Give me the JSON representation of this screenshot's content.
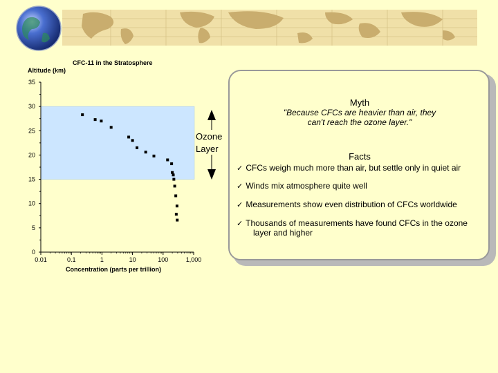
{
  "chart_data": {
    "type": "scatter",
    "title": "CFC-11 in the Stratosphere",
    "ylabel": "Altitude (km)",
    "xlabel": "Concentration (parts per trillion)",
    "x_scale": "log",
    "xlim": [
      0.01,
      1000
    ],
    "ylim": [
      0,
      35
    ],
    "x_tick_labels": [
      "0.01",
      "0.1",
      "1",
      "10",
      "100",
      "1,000"
    ],
    "y_tick_labels": [
      "0",
      "5",
      "10",
      "15",
      "20",
      "25",
      "30",
      "35"
    ],
    "ozone_band": [
      15,
      30
    ],
    "grid": false,
    "legend": "none",
    "series": [
      {
        "points": [
          {
            "x": 0.23,
            "y": 28.3
          },
          {
            "x": 0.6,
            "y": 27.3
          },
          {
            "x": 0.95,
            "y": 27.0
          },
          {
            "x": 2.0,
            "y": 25.7
          },
          {
            "x": 7.5,
            "y": 23.7
          },
          {
            "x": 10,
            "y": 23.0
          },
          {
            "x": 14,
            "y": 21.5
          },
          {
            "x": 27,
            "y": 20.6
          },
          {
            "x": 50,
            "y": 19.8
          },
          {
            "x": 140,
            "y": 19.0
          },
          {
            "x": 190,
            "y": 18.2
          },
          {
            "x": 200,
            "y": 16.4
          },
          {
            "x": 215,
            "y": 15.9
          },
          {
            "x": 225,
            "y": 15.0
          },
          {
            "x": 240,
            "y": 13.6
          },
          {
            "x": 260,
            "y": 11.6
          },
          {
            "x": 285,
            "y": 9.5
          },
          {
            "x": 270,
            "y": 7.8
          },
          {
            "x": 290,
            "y": 6.6
          }
        ]
      }
    ]
  },
  "annotation": {
    "ozone_label_line1": "Ozone",
    "ozone_label_line2": "Layer"
  },
  "callout": {
    "myth_title": "Myth",
    "myth_quote_line1": "\"Because CFCs are heavier than air, they",
    "myth_quote_line2": "can't reach the ozone layer.\"",
    "facts_title": "Facts",
    "check_mark": "✓",
    "facts": [
      {
        "line1": "CFCs weigh much more than air, but settle only in quiet air",
        "line2": ""
      },
      {
        "line1": "Winds mix atmosphere quite well",
        "line2": ""
      },
      {
        "line1": "Measurements show even distribution of CFCs worldwide",
        "line2": ""
      },
      {
        "line1": "Thousands of measurements have found CFCs in the ozone",
        "line2": "layer and higher"
      }
    ]
  },
  "colors": {
    "background": "#ffffcc",
    "ozone_band": "#cce6ff",
    "banner_map": "#f0e0a8",
    "banner_land": "#c9ad6e",
    "globe_ocean": "#2b4fb0",
    "markers": "#000000"
  },
  "icons": {
    "globe": "globe-icon",
    "up_arrow": "arrow-up-icon",
    "down_arrow": "arrow-down-icon"
  }
}
